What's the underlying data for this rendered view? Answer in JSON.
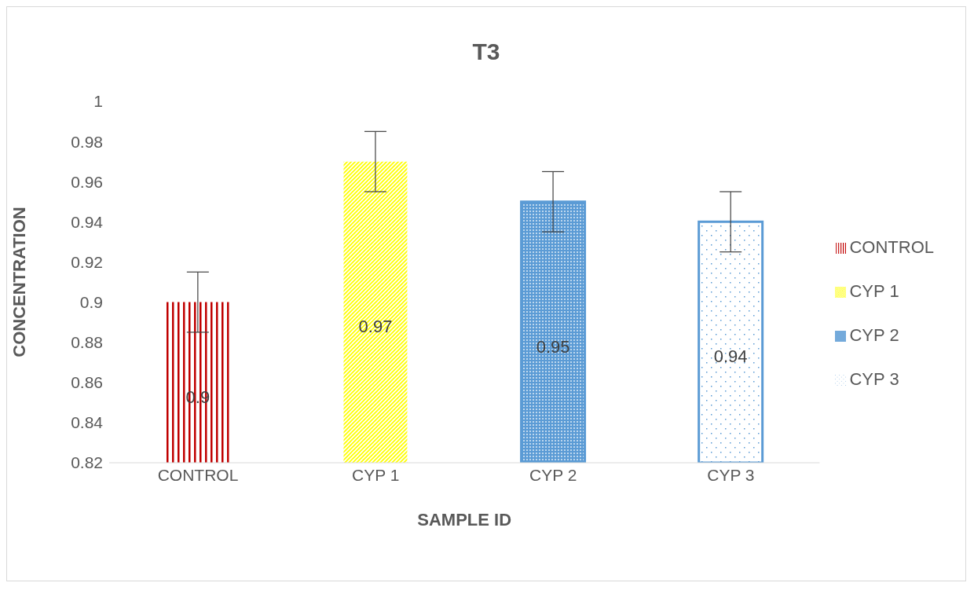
{
  "chart_data": {
    "type": "bar",
    "title": "T3",
    "xlabel": "SAMPLE ID",
    "ylabel": "CONCENTRATION",
    "categories": [
      "CONTROL",
      "CYP 1",
      "CYP 2",
      "CYP 3"
    ],
    "stacked": true,
    "series": [
      {
        "name": "CONTROL",
        "color": "#c00000",
        "values": [
          0.9,
          null,
          null,
          null
        ],
        "errors": [
          0.015,
          null,
          null,
          null
        ]
      },
      {
        "name": "CYP 1",
        "color": "#ffff00",
        "values": [
          null,
          0.97,
          null,
          null
        ],
        "errors": [
          null,
          0.015,
          null,
          null
        ]
      },
      {
        "name": "CYP 2",
        "color": "#5b9bd5",
        "values": [
          null,
          null,
          0.95,
          null
        ],
        "errors": [
          null,
          null,
          0.015,
          null
        ]
      },
      {
        "name": "CYP 3",
        "color": "#5b9bd5",
        "values": [
          null,
          null,
          null,
          0.94
        ],
        "errors": [
          null,
          null,
          null,
          0.015
        ]
      }
    ],
    "ylim": [
      0.82,
      1
    ],
    "yticks": [
      0.82,
      0.84,
      0.86,
      0.88,
      0.9,
      0.92,
      0.94,
      0.96,
      0.98,
      1
    ],
    "data_labels": true,
    "grid": false,
    "legend": "right"
  }
}
